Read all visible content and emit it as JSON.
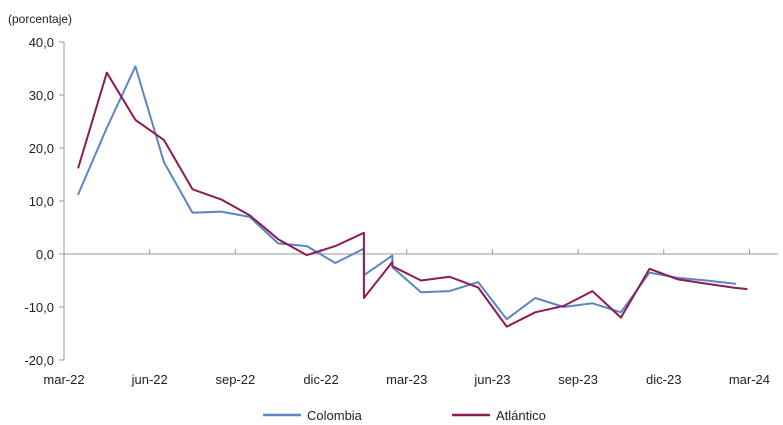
{
  "chart_data": {
    "type": "line",
    "title": "",
    "unit_label": "(porcentaje)",
    "xlabel": "",
    "ylabel": "",
    "ylim": [
      -20,
      40
    ],
    "y_ticks": [
      "40,0",
      "30,0",
      "20,0",
      "10,0",
      "0,0",
      "-10,0",
      "-20,0"
    ],
    "x_tick_labels": [
      "mar-22",
      "jun-22",
      "sep-22",
      "dic-22",
      "mar-23",
      "jun-23",
      "sep-23",
      "dic-23",
      "mar-24"
    ],
    "grid": false,
    "legend_position": "bottom",
    "series": [
      {
        "name": "Colombia",
        "color": "#5b86c2",
        "points": [
          [
            0.5,
            11.3
          ],
          [
            1.5,
            23.8
          ],
          [
            2.5,
            35.4
          ],
          [
            3.5,
            17.3
          ],
          [
            4.5,
            7.8
          ],
          [
            5.5,
            8.0
          ],
          [
            6.5,
            7.0
          ],
          [
            7.5,
            2.0
          ],
          [
            8.5,
            1.5
          ],
          [
            9.5,
            -1.7
          ],
          [
            10.5,
            1.0
          ],
          [
            10.5,
            -4.0
          ],
          [
            11.5,
            -0.3
          ],
          [
            11.5,
            -2.5
          ],
          [
            12.5,
            -7.2
          ],
          [
            13.5,
            -7.0
          ],
          [
            14.5,
            -5.3
          ],
          [
            15.5,
            -12.3
          ],
          [
            16.5,
            -8.3
          ],
          [
            17.5,
            -10.0
          ],
          [
            18.5,
            -9.3
          ],
          [
            19.5,
            -11.0
          ],
          [
            20.5,
            -3.5
          ],
          [
            21.5,
            -4.5
          ],
          [
            22.5,
            -5.0
          ],
          [
            23.5,
            -5.6
          ]
        ]
      },
      {
        "name": "Atlántico",
        "color": "#8e1b52",
        "points": [
          [
            0.5,
            16.3
          ],
          [
            1.5,
            34.2
          ],
          [
            2.5,
            25.3
          ],
          [
            3.5,
            21.5
          ],
          [
            4.5,
            12.2
          ],
          [
            5.5,
            10.3
          ],
          [
            6.5,
            7.3
          ],
          [
            7.5,
            2.8
          ],
          [
            8.5,
            -0.2
          ],
          [
            9.5,
            1.5
          ],
          [
            10.5,
            4.0
          ],
          [
            10.5,
            -8.3
          ],
          [
            11.5,
            -1.5
          ],
          [
            11.5,
            -2.3
          ],
          [
            12.5,
            -5.0
          ],
          [
            13.5,
            -4.3
          ],
          [
            14.5,
            -6.3
          ],
          [
            15.5,
            -13.7
          ],
          [
            16.5,
            -11.0
          ],
          [
            17.5,
            -9.8
          ],
          [
            18.5,
            -7.0
          ],
          [
            19.5,
            -12.0
          ],
          [
            20.5,
            -2.8
          ],
          [
            21.5,
            -4.8
          ],
          [
            22.5,
            -5.6
          ],
          [
            23.5,
            -6.4
          ],
          [
            23.9,
            -6.6
          ]
        ]
      }
    ]
  }
}
